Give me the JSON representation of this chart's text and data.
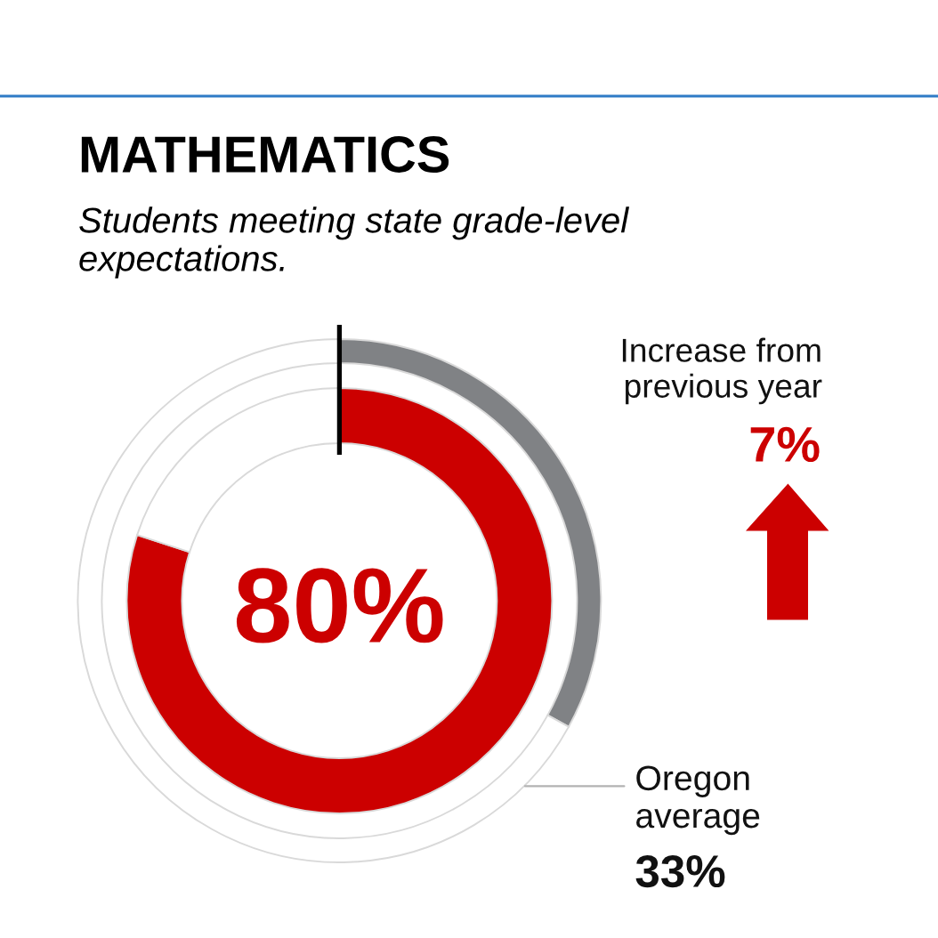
{
  "chart_data": {
    "type": "donut",
    "title": "MATHEMATICS",
    "subtitle": "Students meeting state grade-level expectations.",
    "series": [
      {
        "values": [
          80,
          20
        ],
        "colors": [
          "#cc0000",
          "#ffffff"
        ],
        "value_labels": [
          "80%",
          null
        ]
      },
      {
        "name": "Oregon average",
        "values": [
          33,
          67
        ],
        "colors": [
          "#808285",
          "#ffffff"
        ]
      }
    ],
    "annotations": [
      "Increase from previous year",
      "7%",
      "33%"
    ]
  }
}
